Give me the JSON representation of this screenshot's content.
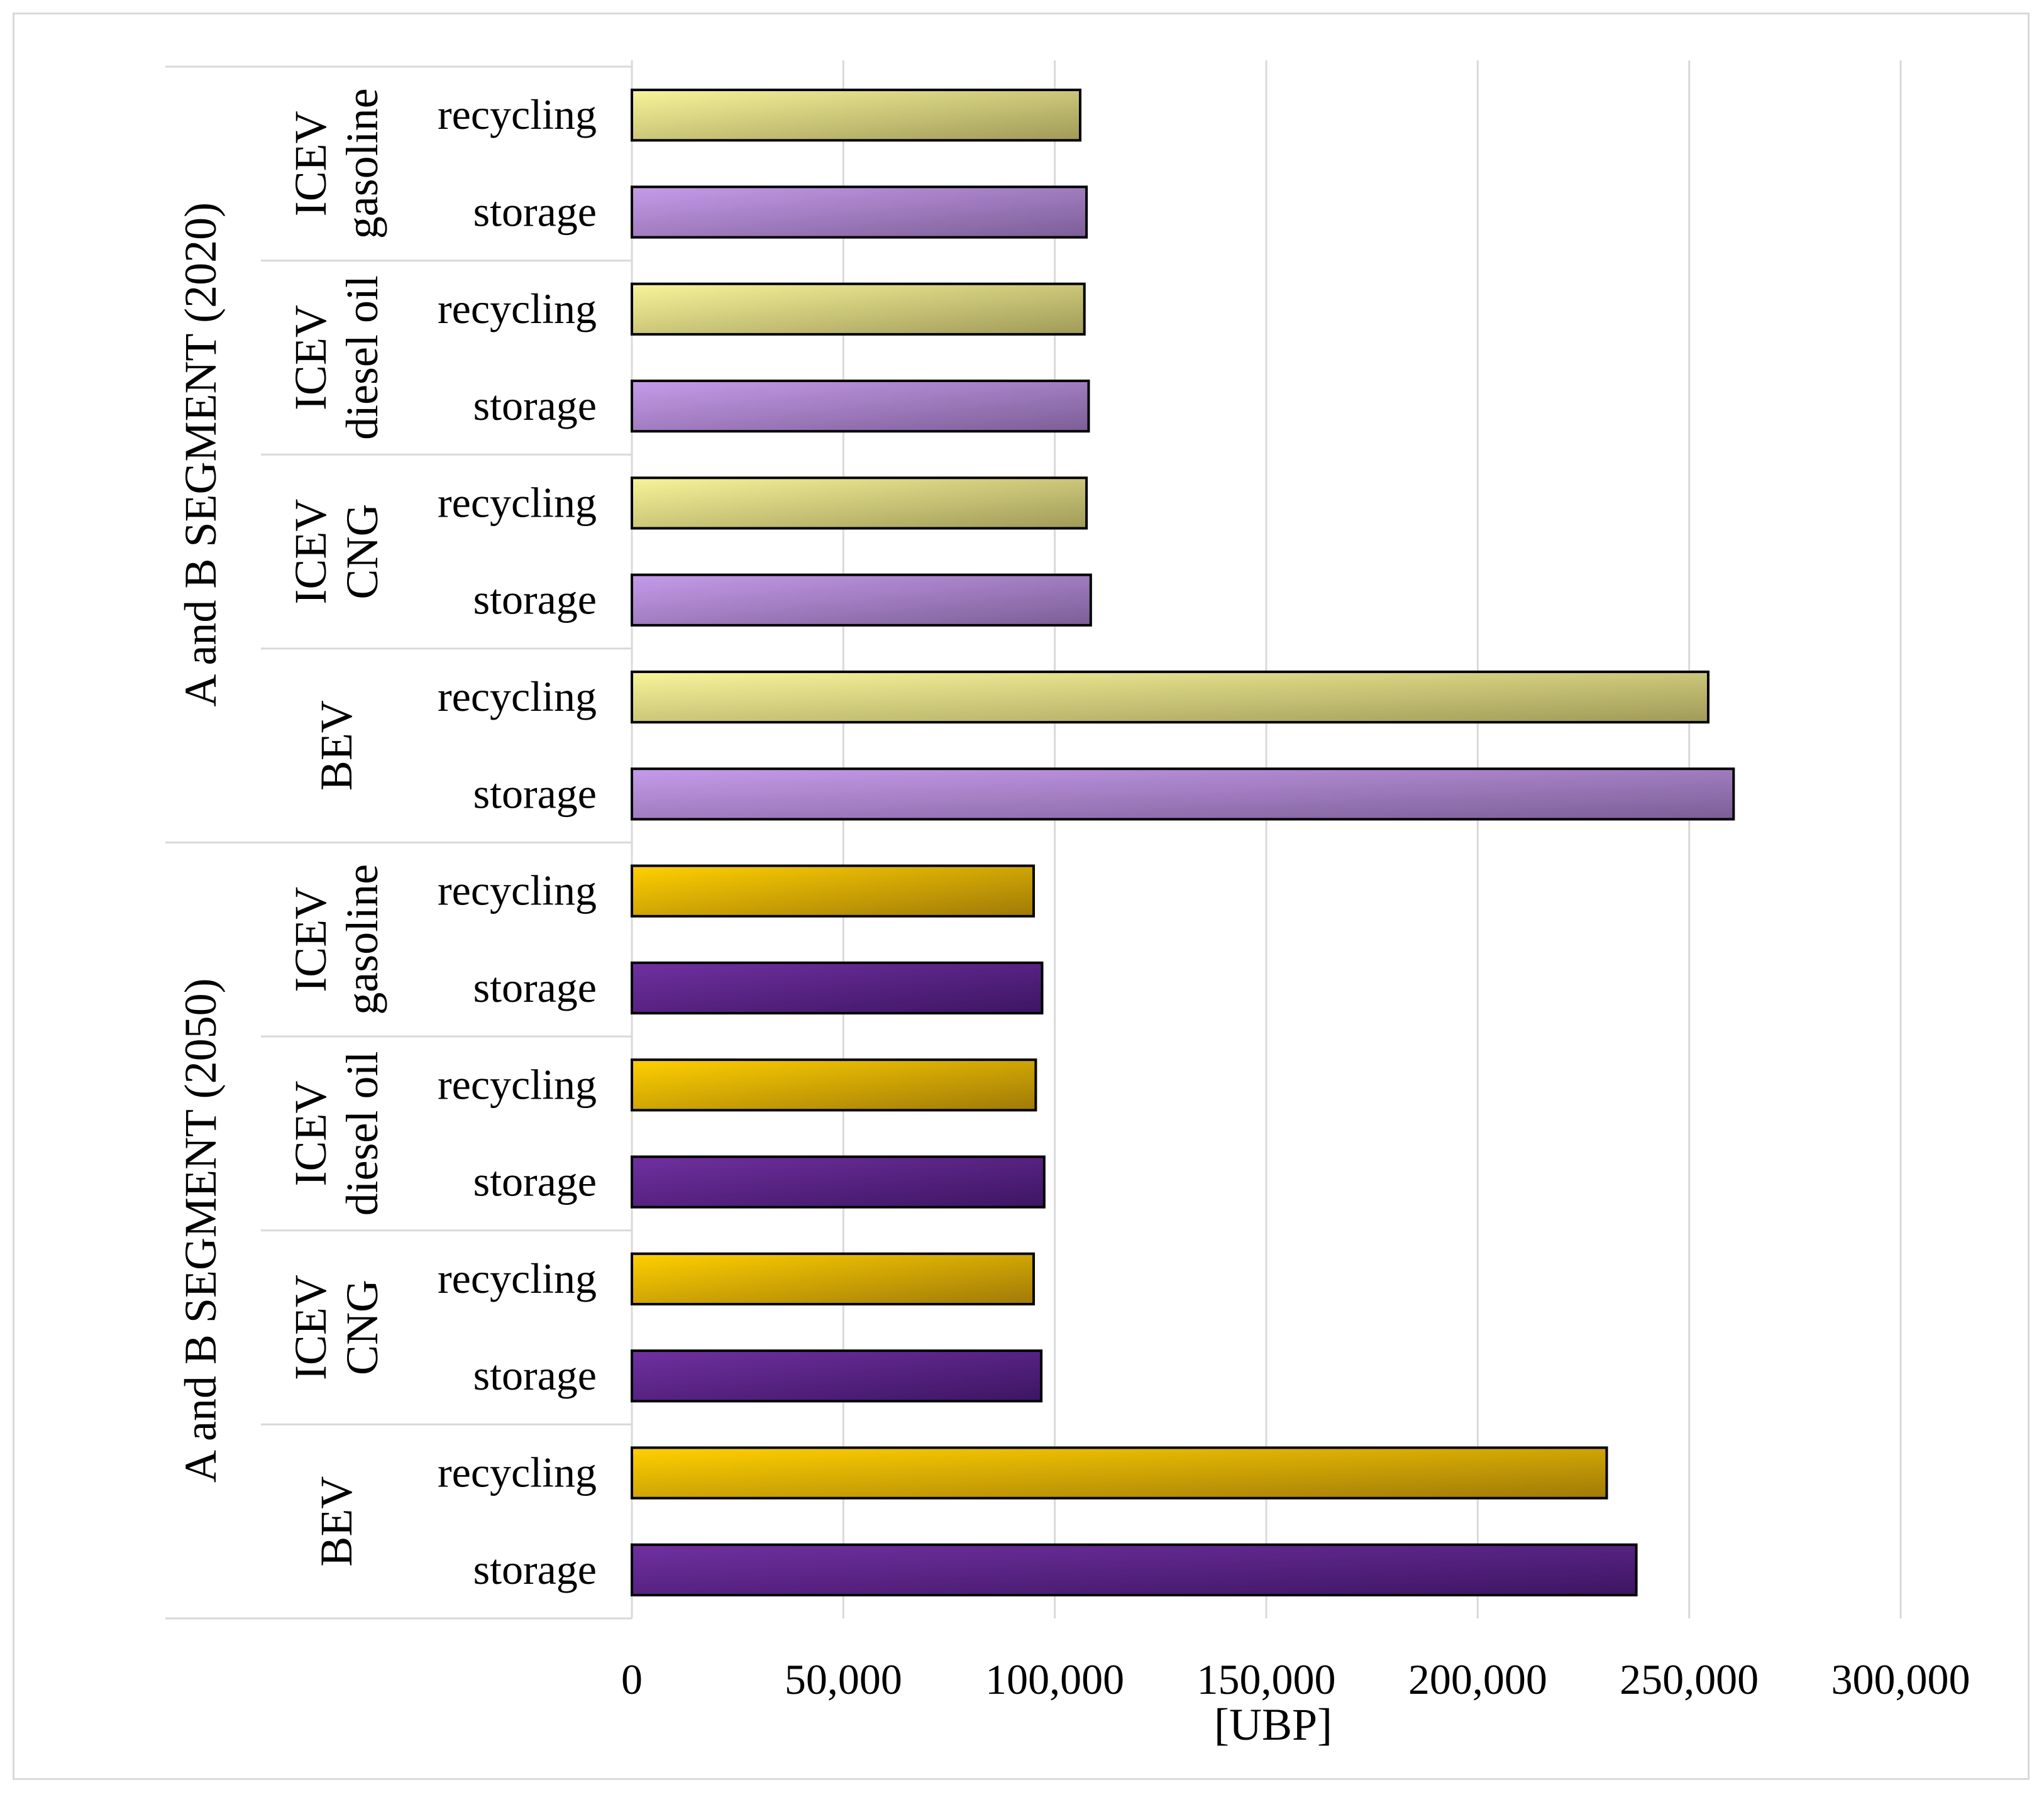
{
  "chart_data": {
    "type": "bar",
    "orientation": "horizontal",
    "title": "",
    "xlabel": "[UBP]",
    "ylabel": "",
    "xlim": [
      0,
      300000
    ],
    "x_ticks": [
      0,
      50000,
      100000,
      150000,
      200000,
      250000,
      300000
    ],
    "x_tick_labels": [
      "0",
      "50,000",
      "100,000",
      "150,000",
      "200,000",
      "250,000",
      "300,000"
    ],
    "grid": "vertical",
    "groups": [
      {
        "label": "A and B SEGMENT (2020)",
        "subgroups": [
          {
            "label_lines": [
              "ICEV",
              "gasoline"
            ],
            "bars": [
              {
                "label": "recycling",
                "value": 106000,
                "style": "recycling_2020"
              },
              {
                "label": "storage",
                "value": 107500,
                "style": "storage_2020"
              }
            ]
          },
          {
            "label_lines": [
              "ICEV",
              "diesel oil"
            ],
            "bars": [
              {
                "label": "recycling",
                "value": 107000,
                "style": "recycling_2020"
              },
              {
                "label": "storage",
                "value": 108000,
                "style": "storage_2020"
              }
            ]
          },
          {
            "label_lines": [
              "ICEV",
              "CNG"
            ],
            "bars": [
              {
                "label": "recycling",
                "value": 107500,
                "style": "recycling_2020"
              },
              {
                "label": "storage",
                "value": 108500,
                "style": "storage_2020"
              }
            ]
          },
          {
            "label_lines": [
              "BEV"
            ],
            "bars": [
              {
                "label": "recycling",
                "value": 254500,
                "style": "recycling_2020"
              },
              {
                "label": "storage",
                "value": 260500,
                "style": "storage_2020"
              }
            ]
          }
        ]
      },
      {
        "label": "A and B SEGMENT (2050)",
        "subgroups": [
          {
            "label_lines": [
              "ICEV",
              "gasoline"
            ],
            "bars": [
              {
                "label": "recycling",
                "value": 95000,
                "style": "recycling_2050"
              },
              {
                "label": "storage",
                "value": 97000,
                "style": "storage_2050"
              }
            ]
          },
          {
            "label_lines": [
              "ICEV",
              "diesel oil"
            ],
            "bars": [
              {
                "label": "recycling",
                "value": 95500,
                "style": "recycling_2050"
              },
              {
                "label": "storage",
                "value": 97500,
                "style": "storage_2050"
              }
            ]
          },
          {
            "label_lines": [
              "ICEV",
              "CNG"
            ],
            "bars": [
              {
                "label": "recycling",
                "value": 95000,
                "style": "recycling_2050"
              },
              {
                "label": "storage",
                "value": 96800,
                "style": "storage_2050"
              }
            ]
          },
          {
            "label_lines": [
              "BEV"
            ],
            "bars": [
              {
                "label": "recycling",
                "value": 230500,
                "style": "recycling_2050"
              },
              {
                "label": "storage",
                "value": 237500,
                "style": "storage_2050"
              }
            ]
          }
        ]
      }
    ],
    "bar_styles": {
      "recycling_2020": {
        "from": "#f7f49a",
        "to": "#a09a58"
      },
      "storage_2020": {
        "from": "#c59bea",
        "to": "#7c5e96"
      },
      "recycling_2050": {
        "from": "#ffd000",
        "to": "#a07a08"
      },
      "storage_2050": {
        "from": "#7030a0",
        "to": "#3d1563"
      }
    }
  }
}
